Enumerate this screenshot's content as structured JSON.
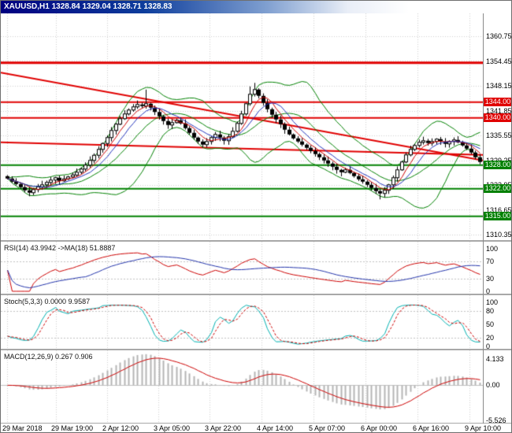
{
  "window": {
    "title": "XAUUSD,H1 1328.84 1329.04 1328.71 1328.83"
  },
  "main_panel": {
    "price_axis": [
      "1360.75",
      "1354.45",
      "1348.15",
      "1341.85",
      "1335.55",
      "1329.25",
      "1322.95",
      "1316.65",
      "1310.35"
    ],
    "level_labels": [
      "1344.00",
      "1340.00",
      "1328.00",
      "1322.00",
      "1315.00"
    ]
  },
  "rsi_panel": {
    "label": "RSI(14) 43.9942 ->MA(18) 51.8887",
    "axis": [
      "100",
      "70",
      "30",
      "0"
    ]
  },
  "stoch_panel": {
    "label": "Stoch(5,3,3) 0.0000 9.9587",
    "axis": [
      "100",
      "80",
      "50",
      "20",
      "0"
    ]
  },
  "macd_panel": {
    "label": "MACD(12,26,9) 0.267 0.906",
    "axis": [
      "4.133",
      "0.00",
      "-5.526"
    ]
  },
  "time_axis": {
    "labels": [
      "29 Mar 2018",
      "29 Mar 19:00",
      "2 Apr 12:00",
      "3 Apr 05:00",
      "3 Apr 22:00",
      "4 Apr 14:00",
      "5 Apr 07:00",
      "6 Apr 00:00",
      "6 Apr 16:00",
      "9 Apr 10:00"
    ]
  },
  "colors": {
    "grid": "#cfcfcf",
    "level_silver": "#c0c0c0",
    "resistance": "#e00000",
    "support": "#008000",
    "bollinger": "#008000",
    "ma_fast": "#cc0000",
    "ma_slow": "#2233bb",
    "candle_bear": "#000000",
    "candle_bull": "#ffffff",
    "rsi_line": "#cc0000",
    "rsi_ma": "#2233aa",
    "stoch_k": "#00b0b0",
    "stoch_d": "#cc0000",
    "macd_hist": "#b4b4b4",
    "macd_signal": "#cc0000"
  },
  "chart_data": {
    "type": "candlestick",
    "title": "XAUUSD,H1",
    "symbol": "XAUUSD",
    "timeframe": "H1",
    "ohlc_display": {
      "open": 1328.84,
      "high": 1329.04,
      "low": 1328.71,
      "close": 1328.83
    },
    "price_axis_values": [
      1360.75,
      1354.45,
      1348.15,
      1341.85,
      1335.55,
      1329.25,
      1322.95,
      1316.65,
      1310.35
    ],
    "price_range_top": 1366.55,
    "price_range_bottom": 1308.95,
    "x_labels": [
      "29 Mar 2018",
      "29 Mar 19:00",
      "2 Apr 12:00",
      "3 Apr 05:00",
      "3 Apr 22:00",
      "4 Apr 14:00",
      "5 Apr 07:00",
      "6 Apr 00:00",
      "6 Apr 16:00",
      "9 Apr 10:00"
    ],
    "closes": [
      1324.6,
      1323.8,
      1323.2,
      1322.4,
      1321.6,
      1321.0,
      1321.8,
      1322.5,
      1323.0,
      1323.6,
      1324.2,
      1324.8,
      1324.0,
      1324.5,
      1325.0,
      1325.5,
      1326.2,
      1327.0,
      1328.0,
      1329.2,
      1330.5,
      1332.0,
      1333.5,
      1335.0,
      1336.8,
      1338.4,
      1339.8,
      1341.0,
      1342.0,
      1342.8,
      1343.4,
      1343.0,
      1343.6,
      1342.6,
      1341.5,
      1340.4,
      1339.2,
      1338.2,
      1338.8,
      1339.4,
      1338.6,
      1337.4,
      1336.2,
      1335.0,
      1334.0,
      1333.2,
      1334.0,
      1335.0,
      1335.8,
      1335.0,
      1334.2,
      1335.2,
      1336.6,
      1338.6,
      1341.0,
      1343.6,
      1346.0,
      1347.2,
      1345.6,
      1343.8,
      1342.2,
      1340.8,
      1339.6,
      1338.4,
      1337.0,
      1335.8,
      1334.8,
      1334.0,
      1333.2,
      1332.4,
      1331.6,
      1330.8,
      1330.0,
      1329.2,
      1328.4,
      1327.6,
      1326.8,
      1326.2,
      1326.8,
      1326.0,
      1325.2,
      1324.4,
      1323.8,
      1323.0,
      1322.2,
      1321.4,
      1320.8,
      1321.6,
      1323.0,
      1324.8,
      1326.8,
      1328.8,
      1330.6,
      1332.0,
      1333.0,
      1333.8,
      1334.2,
      1333.6,
      1334.0,
      1334.6,
      1334.0,
      1333.4,
      1334.0,
      1334.4,
      1333.8,
      1333.0,
      1332.2,
      1331.2,
      1330.0,
      1328.8
    ],
    "wick_overrides": {
      "5": [
        null,
        1320.1
      ],
      "32": [
        1347.2,
        null
      ],
      "56": [
        1348.0,
        null
      ],
      "57": [
        1348.9,
        null
      ],
      "86": [
        null,
        1319.3
      ],
      "87": [
        null,
        1319.8
      ]
    },
    "levels": [
      {
        "price": 1354.0,
        "color": "#e00000",
        "width": 3,
        "label": null
      },
      {
        "price": 1344.0,
        "color": "#e00000",
        "width": 2,
        "label": "1344.00"
      },
      {
        "price": 1340.0,
        "color": "#e00000",
        "width": 2,
        "label": "1340.00"
      },
      {
        "price": 1328.0,
        "color": "#008000",
        "width": 2,
        "label": "1328.00"
      },
      {
        "price": 1322.0,
        "color": "#008000",
        "width": 2,
        "label": "1322.00"
      },
      {
        "price": 1315.0,
        "color": "#008000",
        "width": 2,
        "label": "1315.00"
      }
    ],
    "trendlines": [
      {
        "from": [
          0.0,
          1351.5
        ],
        "to": [
          1.0,
          1329.2
        ],
        "color": "#e00000",
        "width": 2
      },
      {
        "from": [
          0.0,
          1333.8
        ],
        "to": [
          1.0,
          1330.6
        ],
        "color": "#e00000",
        "width": 2
      }
    ],
    "indicators": {
      "bollinger": {
        "period": 14,
        "deviation": 2,
        "color": "#008000"
      },
      "rsi": {
        "period": 14,
        "ma_period": 18,
        "last": 43.9942,
        "ma_last": 51.8887,
        "scale": [
          0,
          100
        ],
        "dotted_levels": [
          70,
          30
        ]
      },
      "stochastic": {
        "k": 5,
        "d": 3,
        "slowing": 3,
        "last_main": 0.0,
        "last_signal": 9.9587,
        "scale": [
          0,
          100
        ],
        "dotted_levels": [
          80,
          20
        ]
      },
      "macd": {
        "fast": 12,
        "slow": 26,
        "signal": 9,
        "last_main": 0.267,
        "last_signal": 0.906,
        "axis_top": 4.133,
        "axis_zero": 0.0,
        "axis_bottom": -5.526
      }
    }
  }
}
